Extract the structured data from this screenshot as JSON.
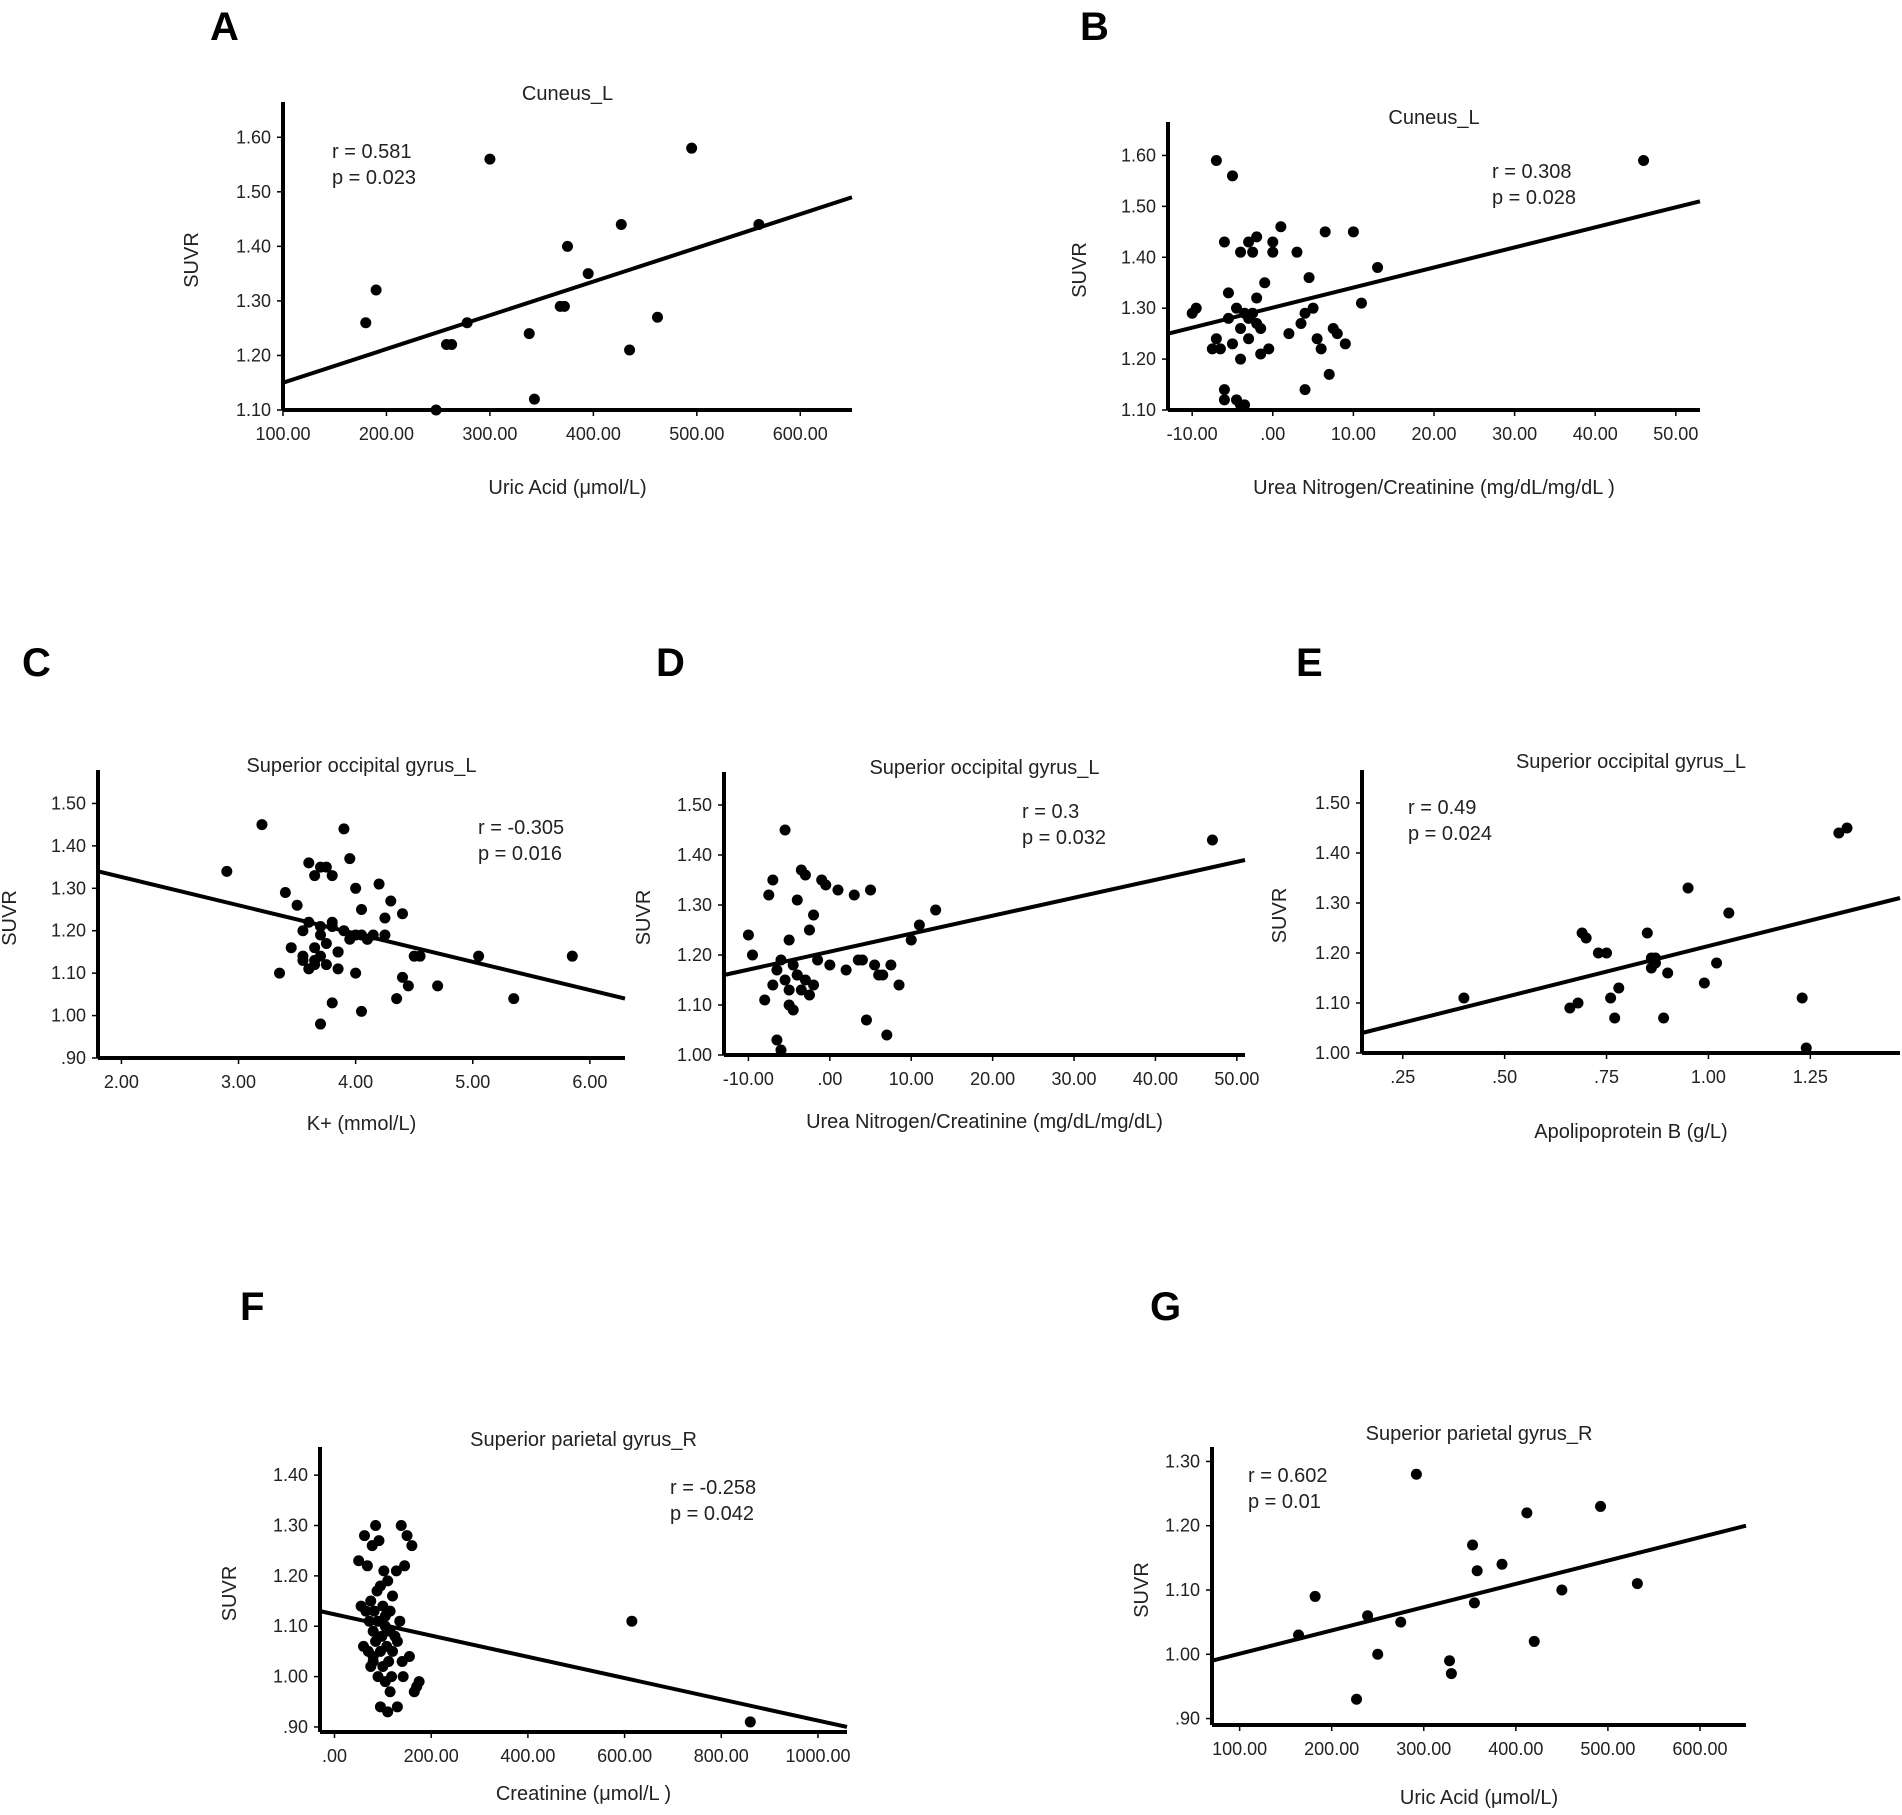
{
  "chart_data": [
    {
      "id": "A",
      "panel_label": "A",
      "type": "scatter",
      "title": "Cuneus_L",
      "xlabel": "Uric Acid (μmol/L)",
      "ylabel": "SUVR",
      "stats": [
        "r = 0.581",
        "p = 0.023"
      ],
      "xlim": [
        100,
        650
      ],
      "ylim": [
        1.1,
        1.65
      ],
      "xticks": [
        100,
        200,
        300,
        400,
        500,
        600
      ],
      "xtick_labels": [
        "100.00",
        "200.00",
        "300.00",
        "400.00",
        "500.00",
        "600.00"
      ],
      "yticks": [
        1.1,
        1.2,
        1.3,
        1.4,
        1.5,
        1.6
      ],
      "ytick_labels": [
        "1.10",
        "1.20",
        "1.30",
        "1.40",
        "1.50",
        "1.60"
      ],
      "fit_line": [
        [
          100,
          1.15
        ],
        [
          650,
          1.49
        ]
      ],
      "x": [
        180,
        190,
        300,
        258,
        263,
        278,
        338,
        343,
        368,
        372,
        375,
        395,
        427,
        435,
        462,
        495,
        560,
        248
      ],
      "y": [
        1.26,
        1.32,
        1.56,
        1.22,
        1.22,
        1.26,
        1.24,
        1.12,
        1.29,
        1.29,
        1.4,
        1.35,
        1.44,
        1.21,
        1.27,
        1.58,
        1.44,
        1.1
      ]
    },
    {
      "id": "B",
      "panel_label": "B",
      "type": "scatter",
      "title": "Cuneus_L",
      "xlabel": "Urea Nitrogen/Creatinine (mg/dL/mg/dL )",
      "ylabel": "SUVR",
      "stats": [
        "r = 0.308",
        "p = 0.028"
      ],
      "xlim": [
        -13,
        53
      ],
      "ylim": [
        1.1,
        1.65
      ],
      "xticks": [
        -10,
        0,
        10,
        20,
        30,
        40,
        50
      ],
      "xtick_labels": [
        "-10.00",
        ".00",
        "10.00",
        "20.00",
        "30.00",
        "40.00",
        "50.00"
      ],
      "yticks": [
        1.1,
        1.2,
        1.3,
        1.4,
        1.5,
        1.6
      ],
      "ytick_labels": [
        "1.10",
        "1.20",
        "1.30",
        "1.40",
        "1.50",
        "1.60"
      ],
      "fit_line": [
        [
          -13,
          1.25
        ],
        [
          53,
          1.51
        ]
      ],
      "x": [
        -10,
        -9.5,
        -7,
        -7,
        -6.5,
        -6,
        -6,
        -5.5,
        -5,
        -5,
        -4.5,
        -4.5,
        -4,
        -4,
        -4,
        -3.5,
        -3.5,
        -3,
        -3,
        -3,
        -2.5,
        -2.5,
        -2,
        -2,
        -2,
        -1.5,
        -1.5,
        -1,
        -0.5,
        0,
        0,
        1,
        2,
        3,
        3.5,
        4,
        4,
        4.5,
        5,
        5.5,
        6,
        6.5,
        7,
        7.5,
        8,
        9,
        10,
        11,
        13,
        46,
        -7.5,
        -6,
        -5.5,
        -4
      ],
      "y": [
        1.29,
        1.3,
        1.59,
        1.24,
        1.22,
        1.43,
        1.14,
        1.28,
        1.56,
        1.23,
        1.3,
        1.12,
        1.26,
        1.2,
        1.41,
        1.29,
        1.11,
        1.43,
        1.28,
        1.24,
        1.41,
        1.29,
        1.44,
        1.32,
        1.27,
        1.26,
        1.21,
        1.35,
        1.22,
        1.43,
        1.41,
        1.46,
        1.25,
        1.41,
        1.27,
        1.14,
        1.29,
        1.36,
        1.3,
        1.24,
        1.22,
        1.45,
        1.17,
        1.26,
        1.25,
        1.23,
        1.45,
        1.31,
        1.38,
        1.59,
        1.22,
        1.12,
        1.33,
        1.11
      ]
    },
    {
      "id": "C",
      "panel_label": "C",
      "type": "scatter",
      "title": "Superior occipital gyrus_L",
      "xlabel": "K+ (mmol/L)",
      "ylabel": "SUVR",
      "stats": [
        "r = -0.305",
        "p = 0.016"
      ],
      "xlim": [
        1.8,
        6.3
      ],
      "ylim": [
        0.9,
        1.56
      ],
      "xticks": [
        2,
        3,
        4,
        5,
        6
      ],
      "xtick_labels": [
        "2.00",
        "3.00",
        "4.00",
        "5.00",
        "6.00"
      ],
      "yticks": [
        0.9,
        1.0,
        1.1,
        1.2,
        1.3,
        1.4,
        1.5
      ],
      "ytick_labels": [
        ".90",
        "1.00",
        "1.10",
        "1.20",
        "1.30",
        "1.40",
        "1.50"
      ],
      "fit_line": [
        [
          1.8,
          1.34
        ],
        [
          6.3,
          1.04
        ]
      ],
      "x": [
        2.9,
        3.2,
        3.35,
        3.4,
        3.45,
        3.5,
        3.55,
        3.55,
        3.6,
        3.6,
        3.6,
        3.65,
        3.65,
        3.65,
        3.7,
        3.7,
        3.7,
        3.7,
        3.75,
        3.75,
        3.75,
        3.8,
        3.8,
        3.8,
        3.85,
        3.85,
        3.9,
        3.9,
        3.95,
        3.95,
        4.0,
        4.0,
        4.0,
        4.05,
        4.05,
        4.1,
        4.1,
        4.15,
        4.2,
        4.25,
        4.3,
        4.35,
        4.4,
        4.4,
        4.45,
        4.5,
        4.55,
        4.7,
        5.05,
        5.35,
        5.85,
        3.7,
        3.8,
        3.55,
        3.65,
        4.05,
        3.85,
        4.25
      ],
      "y": [
        1.34,
        1.45,
        1.1,
        1.29,
        1.16,
        1.26,
        1.2,
        1.13,
        1.36,
        1.22,
        1.11,
        1.33,
        1.16,
        1.13,
        1.35,
        1.21,
        1.14,
        0.98,
        1.35,
        1.17,
        1.12,
        1.33,
        1.21,
        1.03,
        1.15,
        1.11,
        1.44,
        1.2,
        1.37,
        1.18,
        1.3,
        1.19,
        1.1,
        1.25,
        1.01,
        1.18,
        1.18,
        1.19,
        1.31,
        1.23,
        1.27,
        1.04,
        1.24,
        1.09,
        1.07,
        1.14,
        1.14,
        1.07,
        1.14,
        1.04,
        1.14,
        1.19,
        1.22,
        1.14,
        1.12,
        1.19,
        1.15,
        1.19
      ]
    },
    {
      "id": "D",
      "panel_label": "D",
      "type": "scatter",
      "title": "Superior occipital gyrus_L",
      "xlabel": "Urea Nitrogen/Creatinine (mg/dL/mg/dL)",
      "ylabel": "SUVR",
      "stats": [
        "r = 0.3",
        "p = 0.032"
      ],
      "xlim": [
        -13,
        51
      ],
      "ylim": [
        1.0,
        1.55
      ],
      "xticks": [
        -10,
        0,
        10,
        20,
        30,
        40,
        50
      ],
      "xtick_labels": [
        "-10.00",
        ".00",
        "10.00",
        "20.00",
        "30.00",
        "40.00",
        "50.00"
      ],
      "yticks": [
        1.0,
        1.1,
        1.2,
        1.3,
        1.4,
        1.5
      ],
      "ytick_labels": [
        "1.00",
        "1.10",
        "1.20",
        "1.30",
        "1.40",
        "1.50"
      ],
      "fit_line": [
        [
          -13,
          1.16
        ],
        [
          51,
          1.39
        ]
      ],
      "x": [
        -10,
        -9.5,
        -8,
        -7.5,
        -7,
        -7,
        -6.5,
        -6,
        -6,
        -5.5,
        -5.5,
        -5,
        -5,
        -4.5,
        -4.5,
        -4,
        -4,
        -3.5,
        -3.5,
        -3,
        -3,
        -2.5,
        -2.5,
        -2,
        -1.5,
        -1,
        -0.5,
        0,
        1,
        2,
        3,
        3.5,
        4,
        4.5,
        5,
        5.5,
        6,
        6.5,
        7,
        7.5,
        8.5,
        10,
        11,
        13,
        47,
        -6.5,
        -5,
        -4,
        -2
      ],
      "y": [
        1.24,
        1.2,
        1.11,
        1.32,
        1.14,
        1.35,
        1.03,
        1.19,
        1.01,
        1.45,
        1.15,
        1.23,
        1.1,
        1.18,
        1.09,
        1.31,
        1.16,
        1.37,
        1.13,
        1.36,
        1.15,
        1.25,
        1.12,
        1.28,
        1.19,
        1.35,
        1.34,
        1.18,
        1.33,
        1.17,
        1.32,
        1.19,
        1.19,
        1.07,
        1.33,
        1.18,
        1.16,
        1.16,
        1.04,
        1.18,
        1.14,
        1.23,
        1.26,
        1.29,
        1.43,
        1.17,
        1.13,
        1.16,
        1.14
      ]
    },
    {
      "id": "E",
      "panel_label": "E",
      "type": "scatter",
      "title": "Superior occipital gyrus_L",
      "xlabel": "Apolipoprotein B (g/L)",
      "ylabel": "SUVR",
      "stats": [
        "r = 0.49",
        "p = 0.024"
      ],
      "xlim": [
        0.15,
        1.47
      ],
      "ylim": [
        1.0,
        1.55
      ],
      "xticks": [
        0.25,
        0.5,
        0.75,
        1.0,
        1.25
      ],
      "xtick_labels": [
        ".25",
        ".50",
        ".75",
        "1.00",
        "1.25"
      ],
      "yticks": [
        1.0,
        1.1,
        1.2,
        1.3,
        1.4,
        1.5
      ],
      "ytick_labels": [
        "1.00",
        "1.10",
        "1.20",
        "1.30",
        "1.40",
        "1.50"
      ],
      "fit_line": [
        [
          0.15,
          1.04
        ],
        [
          1.47,
          1.31
        ]
      ],
      "x": [
        0.4,
        0.66,
        0.68,
        0.69,
        0.7,
        0.73,
        0.75,
        0.76,
        0.77,
        0.78,
        0.85,
        0.86,
        0.86,
        0.87,
        0.87,
        0.89,
        0.9,
        0.95,
        0.99,
        1.02,
        1.05,
        1.23,
        1.24,
        1.32,
        1.34
      ],
      "y": [
        1.11,
        1.09,
        1.1,
        1.24,
        1.23,
        1.2,
        1.2,
        1.11,
        1.07,
        1.13,
        1.24,
        1.19,
        1.17,
        1.19,
        1.18,
        1.07,
        1.16,
        1.33,
        1.14,
        1.18,
        1.28,
        1.11,
        1.01,
        1.44,
        1.45
      ]
    },
    {
      "id": "F",
      "panel_label": "F",
      "type": "scatter",
      "title": "Superior parietal gyrus_R",
      "xlabel": "Creatinine (μmol/L )",
      "ylabel": "SUVR",
      "stats": [
        "r = -0.258",
        "p = 0.042"
      ],
      "xlim": [
        -30,
        1060
      ],
      "ylim": [
        0.89,
        1.44
      ],
      "xticks": [
        0,
        200,
        400,
        600,
        800,
        1000
      ],
      "xtick_labels": [
        ".00",
        "200.00",
        "400.00",
        "600.00",
        "800.00",
        "1000.00"
      ],
      "yticks": [
        0.9,
        1.0,
        1.1,
        1.2,
        1.3,
        1.4
      ],
      "ytick_labels": [
        ".90",
        "1.00",
        "1.10",
        "1.20",
        "1.30",
        "1.40"
      ],
      "fit_line": [
        [
          -30,
          1.13
        ],
        [
          1060,
          0.9
        ]
      ],
      "x": [
        50,
        55,
        60,
        62,
        65,
        68,
        70,
        72,
        75,
        75,
        78,
        80,
        80,
        82,
        85,
        85,
        88,
        90,
        90,
        92,
        95,
        95,
        98,
        100,
        100,
        102,
        105,
        105,
        108,
        110,
        110,
        112,
        115,
        115,
        118,
        120,
        120,
        125,
        128,
        130,
        135,
        138,
        140,
        142,
        145,
        150,
        155,
        160,
        165,
        170,
        175,
        95,
        105,
        80,
        115,
        130,
        615,
        860
      ],
      "y": [
        1.23,
        1.14,
        1.06,
        1.28,
        1.13,
        1.22,
        1.05,
        1.11,
        1.15,
        1.02,
        1.26,
        1.09,
        1.04,
        1.13,
        1.3,
        1.07,
        1.17,
        1.0,
        1.11,
        1.27,
        1.18,
        0.94,
        1.08,
        1.14,
        1.02,
        1.21,
        1.1,
        0.99,
        1.06,
        0.93,
        1.19,
        1.03,
        1.09,
        1.13,
        1.0,
        1.16,
        1.05,
        1.08,
        1.21,
        0.94,
        1.11,
        1.3,
        1.03,
        1.0,
        1.22,
        1.28,
        1.04,
        1.26,
        0.97,
        0.98,
        0.99,
        1.05,
        1.12,
        1.03,
        0.97,
        1.07,
        1.11,
        0.91
      ]
    },
    {
      "id": "G",
      "panel_label": "G",
      "type": "scatter",
      "title": "Superior parietal gyrus_R",
      "xlabel": "Uric Acid (μmol/L)",
      "ylabel": "SUVR",
      "stats": [
        "r = 0.602",
        "p = 0.01"
      ],
      "xlim": [
        70,
        650
      ],
      "ylim": [
        0.89,
        1.31
      ],
      "xticks": [
        100,
        200,
        300,
        400,
        500,
        600
      ],
      "xtick_labels": [
        "100.00",
        "200.00",
        "300.00",
        "400.00",
        "500.00",
        "600.00"
      ],
      "yticks": [
        0.9,
        1.0,
        1.1,
        1.2,
        1.3
      ],
      "ytick_labels": [
        ".90",
        "1.00",
        "1.10",
        "1.20",
        "1.30"
      ],
      "fit_line": [
        [
          70,
          0.99
        ],
        [
          650,
          1.2
        ]
      ],
      "x": [
        164,
        182,
        227,
        239,
        250,
        275,
        292,
        328,
        330,
        353,
        355,
        358,
        385,
        412,
        420,
        450,
        492,
        532
      ],
      "y": [
        1.03,
        1.09,
        0.93,
        1.06,
        1.0,
        1.05,
        1.28,
        0.99,
        0.97,
        1.17,
        1.08,
        1.13,
        1.14,
        1.22,
        1.02,
        1.1,
        1.23,
        1.11
      ]
    }
  ]
}
